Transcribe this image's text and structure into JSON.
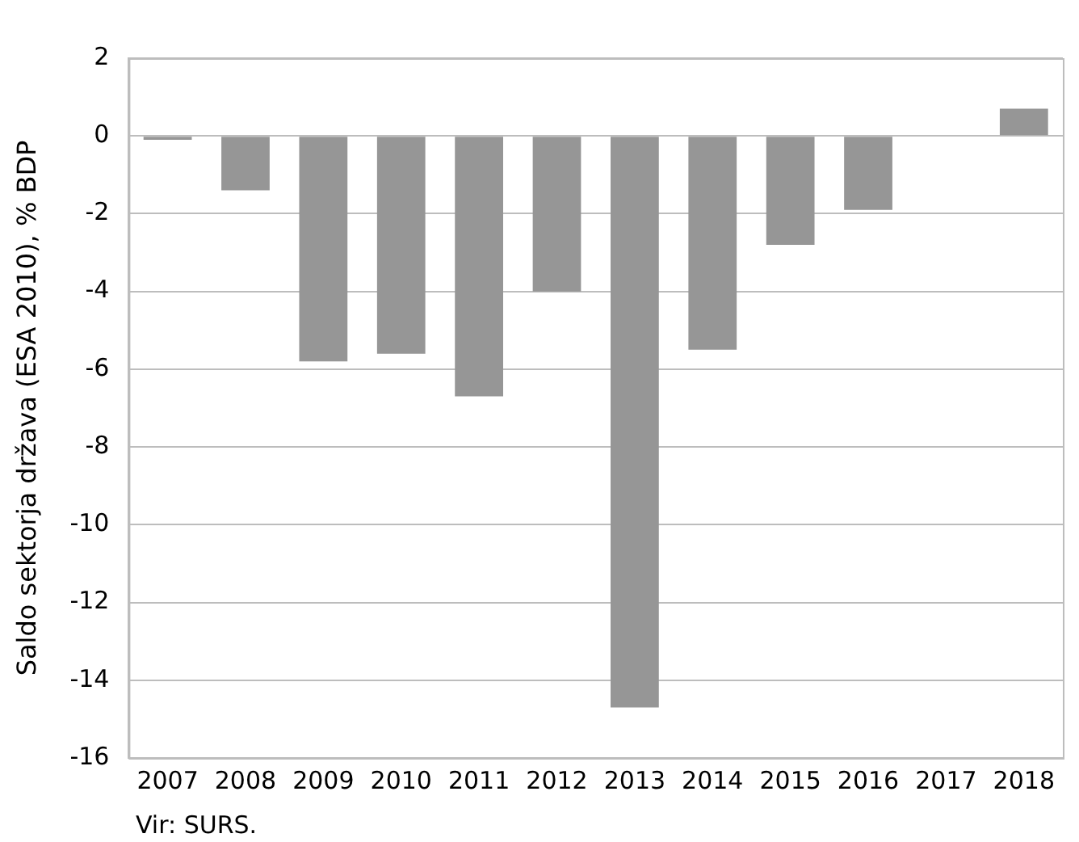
{
  "chart_data": {
    "type": "bar",
    "ylabel": "Saldo sektorja država (ESA 2010), % BDP",
    "categories": [
      "2007",
      "2008",
      "2009",
      "2010",
      "2011",
      "2012",
      "2013",
      "2014",
      "2015",
      "2016",
      "2017",
      "2018"
    ],
    "values": [
      -0.1,
      -1.4,
      -5.8,
      -5.6,
      -6.7,
      -4.0,
      -14.7,
      -5.5,
      -2.8,
      -1.9,
      0,
      0.7
    ],
    "color": "#969696",
    "ylim": [
      -16,
      2
    ],
    "yticks": [
      -16,
      -14,
      -12,
      -10,
      -8,
      -6,
      -4,
      -2,
      0,
      2
    ],
    "grid": "y",
    "legend": false,
    "annotations": [
      "Vir: SURS."
    ]
  }
}
